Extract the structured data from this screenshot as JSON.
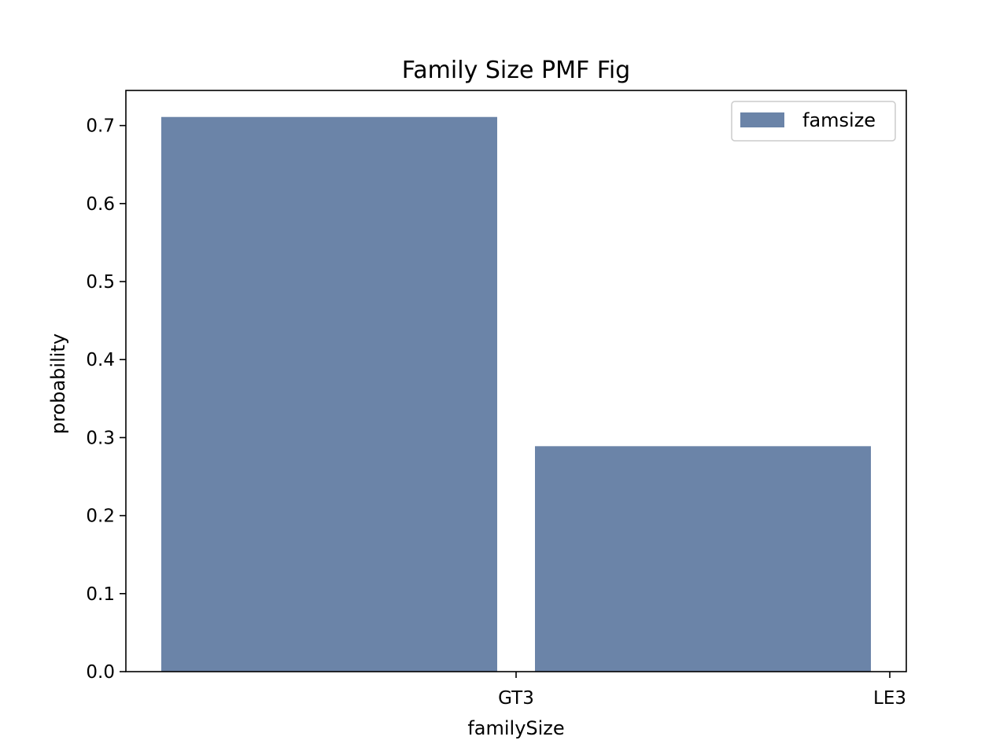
{
  "chart_data": {
    "type": "bar",
    "title": "Family Size PMF Fig",
    "xlabel": "familySize",
    "ylabel": "probability",
    "categories": [
      "GT3",
      "LE3"
    ],
    "series": [
      {
        "name": "famsize",
        "values": [
          0.711,
          0.289
        ],
        "color": "#6b84a8"
      }
    ],
    "ylim": [
      0,
      0.745
    ],
    "yticks": [
      "0.0",
      "0.1",
      "0.2",
      "0.3",
      "0.4",
      "0.5",
      "0.6",
      "0.7"
    ],
    "legend_position": "top-right",
    "grid": false,
    "bar_alignment": "edge-right"
  }
}
